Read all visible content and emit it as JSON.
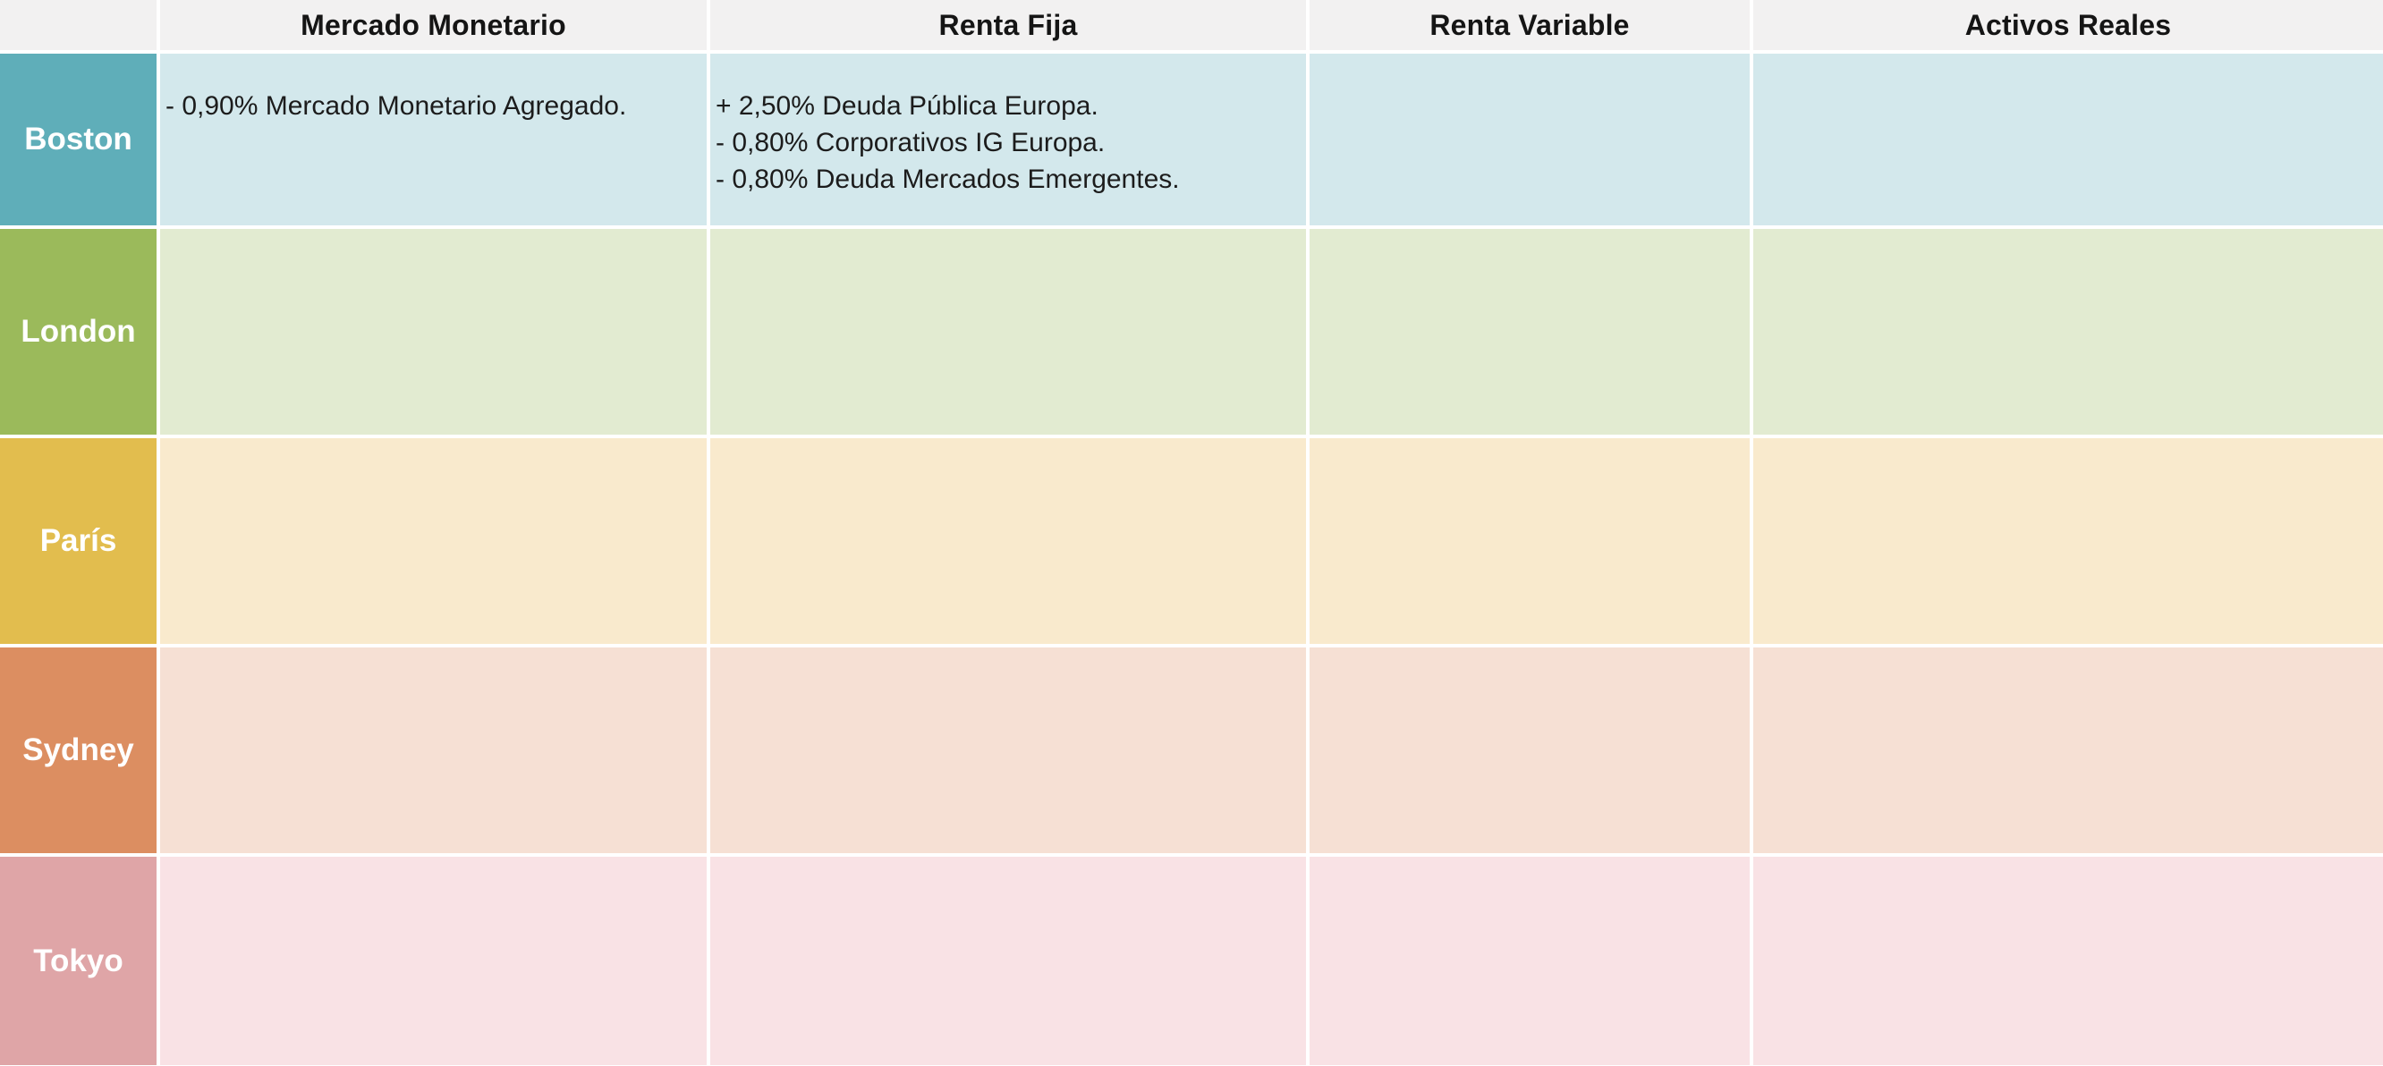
{
  "chart_data": {
    "type": "table",
    "title": "",
    "columns": [
      "Mercado Monetario",
      "Renta Fija",
      "Renta Variable",
      "Activos Reales"
    ],
    "rows": [
      {
        "label": "Boston",
        "header_color": "#5FAEB9",
        "tint_color": "#D3E8EC",
        "cells": [
          {
            "lines": [
              "- 0,90% Mercado Monetario Agregado."
            ]
          },
          {
            "lines": [
              "+ 2,50% Deuda Pública Europa.",
              "- 0,80% Corporativos IG Europa.",
              "- 0,80% Deuda Mercados Emergentes."
            ]
          },
          {
            "lines": []
          },
          {
            "lines": []
          }
        ]
      },
      {
        "label": "London",
        "header_color": "#9BBA5B",
        "tint_color": "#E2EBD1",
        "cells": [
          {
            "lines": []
          },
          {
            "lines": []
          },
          {
            "lines": []
          },
          {
            "lines": []
          }
        ]
      },
      {
        "label": "París",
        "header_color": "#E2BD4E",
        "tint_color": "#F9EACD",
        "cells": [
          {
            "lines": []
          },
          {
            "lines": []
          },
          {
            "lines": []
          },
          {
            "lines": []
          }
        ]
      },
      {
        "label": "Sydney",
        "header_color": "#DC8E61",
        "tint_color": "#F6E0D4",
        "cells": [
          {
            "lines": []
          },
          {
            "lines": []
          },
          {
            "lines": []
          },
          {
            "lines": []
          }
        ]
      },
      {
        "label": "Tokyo",
        "header_color": "#DFA5A7",
        "tint_color": "#F9E2E5",
        "cells": [
          {
            "lines": []
          },
          {
            "lines": []
          },
          {
            "lines": []
          },
          {
            "lines": []
          }
        ]
      }
    ],
    "layout": {
      "header_bg": "#F2F1F1",
      "grid_line_color": "#FFFFFF",
      "header_text_color": "#151515",
      "cell_text_color": "#1C1C1C",
      "row_label_text_color": "#FFFFFF",
      "legend": "none",
      "grid": "white 4px separators, tinted row bands"
    }
  }
}
